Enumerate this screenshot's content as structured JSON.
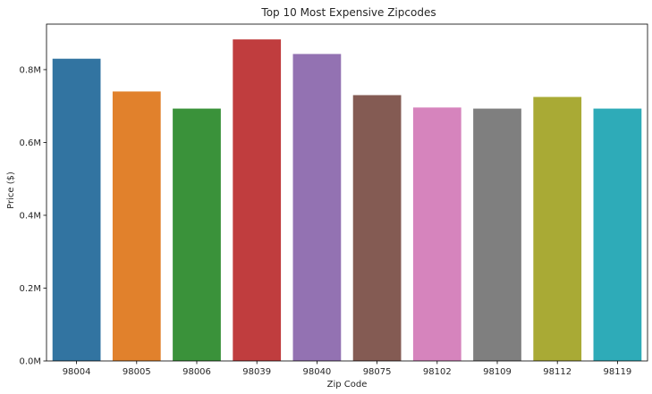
{
  "chart_data": {
    "type": "bar",
    "title": "Top 10 Most Expensive Zipcodes",
    "xlabel": "Zip Code",
    "ylabel": "Price ($)",
    "categories": [
      "98004",
      "98005",
      "98006",
      "98039",
      "98040",
      "98075",
      "98102",
      "98109",
      "98112",
      "98119"
    ],
    "values": [
      830000,
      740000,
      693000,
      883000,
      843000,
      730000,
      696000,
      693000,
      725000,
      693000
    ],
    "colors": [
      "#3274a1",
      "#e1812c",
      "#3a923a",
      "#c03d3e",
      "#9372b2",
      "#845b53",
      "#d684bd",
      "#7f7f7f",
      "#a9aa35",
      "#2eabb8"
    ],
    "ylim": [
      0,
      925000
    ],
    "yticks": [
      {
        "value": 0,
        "label": "0.0M"
      },
      {
        "value": 200000,
        "label": "0.2M"
      },
      {
        "value": 400000,
        "label": "0.4M"
      },
      {
        "value": 600000,
        "label": "0.6M"
      },
      {
        "value": 800000,
        "label": "0.8M"
      }
    ],
    "grid": false,
    "legend": "none"
  }
}
